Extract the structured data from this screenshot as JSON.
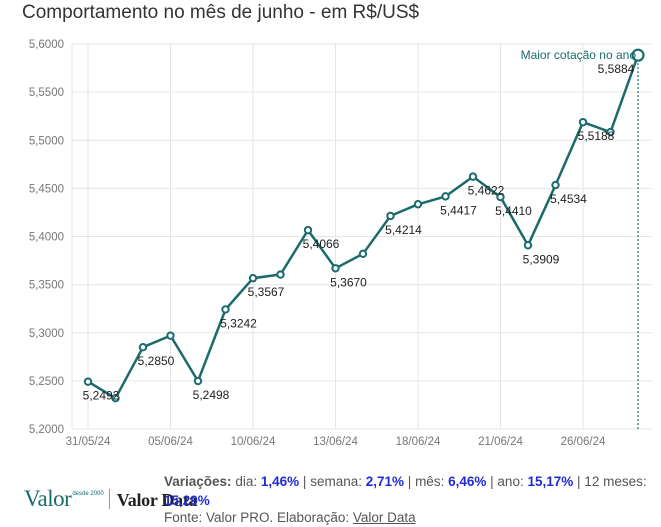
{
  "chart_data": {
    "type": "line",
    "title": "Comportamento no mês de junho - em R$/US$",
    "ylim": [
      5.2,
      5.6
    ],
    "yticks": [
      "5,2000",
      "5,2500",
      "5,3000",
      "5,3500",
      "5,4000",
      "5,4500",
      "5,5000",
      "5,5500",
      "5,6000"
    ],
    "grid": true,
    "line_color": "#1a6b6b",
    "x": [
      "31/05/24",
      "03/06/24",
      "04/06/24",
      "05/06/24",
      "06/06/24",
      "07/06/24",
      "10/06/24",
      "11/06/24",
      "12/06/24",
      "13/06/24",
      "14/06/24",
      "17/06/24",
      "18/06/24",
      "19/06/24",
      "20/06/24",
      "21/06/24",
      "24/06/24",
      "25/06/24",
      "26/06/24",
      "27/06/24",
      "28/06/24"
    ],
    "xticks": [
      "31/05/24",
      "05/06/24",
      "10/06/24",
      "13/06/24",
      "18/06/24",
      "21/06/24",
      "26/06/24"
    ],
    "values": [
      5.2492,
      5.232,
      5.285,
      5.297,
      5.2498,
      5.3242,
      5.3567,
      5.3605,
      5.4066,
      5.367,
      5.382,
      5.4214,
      5.4335,
      5.4417,
      5.4622,
      5.441,
      5.3909,
      5.4534,
      5.5188,
      5.5085,
      5.5884
    ],
    "data_labels": {
      "0": "5,2492",
      "2": "5,2850",
      "4": "5,2498",
      "5": "5,3242",
      "6": "5,3567",
      "8": "5,4066",
      "9": "5,3670",
      "11": "5,4214",
      "13": "5,4417",
      "14": "5,4622",
      "15": "5,4410",
      "16": "5,3909",
      "17": "5,4534",
      "18": "5,5188",
      "20": "5,5884"
    },
    "annotation": {
      "text": "Maior cotação no ano",
      "index": 20
    }
  },
  "footer": {
    "logo_valor": "Valor",
    "logo_valor_small": "desde 2000",
    "logo_valordata": "Valor Data",
    "variations_label": "Variações:",
    "dia_label": "dia:",
    "dia_value": "1,46%",
    "semana_label": "semana:",
    "semana_value": "2,71%",
    "mes_label": "mês:",
    "mes_value": "6,46%",
    "ano_label": "ano:",
    "ano_value": "15,17%",
    "meses12_label": "12 meses:",
    "meses12_value": "15,29%",
    "source_prefix": "Fonte: Valor PRO. Elaboração:",
    "source_link": "Valor Data"
  }
}
